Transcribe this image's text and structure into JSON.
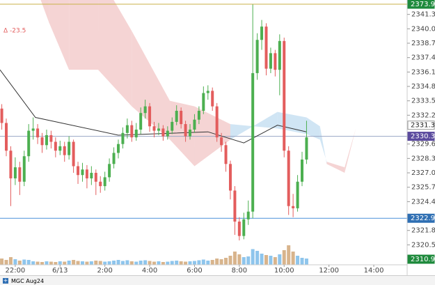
{
  "chart_data": {
    "type": "candlestick",
    "annotation": "Δ  -23.5",
    "instrument": "MGC Aug24",
    "up_color": "#4caf50",
    "down_color": "#e35d5d",
    "volume_up_color": "#8ec5ec",
    "volume_down_color": "#d8b48c",
    "x": [
      21.4,
      21.6,
      21.8,
      22.0,
      22.2,
      22.4,
      22.6,
      22.8,
      23.0,
      23.2,
      23.4,
      23.6,
      23.8,
      24.0,
      24.2,
      24.4,
      24.6,
      24.8,
      25.0,
      25.2,
      25.4,
      25.6,
      25.8,
      26.0,
      26.2,
      26.4,
      26.6,
      26.8,
      27.0,
      27.2,
      27.4,
      27.6,
      27.8,
      28.0,
      28.2,
      28.4,
      28.6,
      28.8,
      29.0,
      29.2,
      29.4,
      29.6,
      29.8,
      30.0,
      30.2,
      30.4,
      30.6,
      30.8,
      31.0,
      31.2,
      31.4,
      31.6,
      31.8,
      32.0,
      32.2,
      32.4,
      32.6,
      32.8,
      33.0,
      33.2,
      33.4,
      33.6,
      33.8,
      34.0,
      34.2,
      34.4,
      34.6,
      34.8,
      35.0
    ],
    "open": [
      2332.8,
      2331.5,
      2329.0,
      2326.5,
      2327.5,
      2326.2,
      2328.5,
      2330.8,
      2331.0,
      2330.2,
      2329.5,
      2330.4,
      2329.8,
      2329.0,
      2329.4,
      2328.6,
      2329.8,
      2327.6,
      2326.8,
      2327.3,
      2326.5,
      2327.0,
      2326.2,
      2325.8,
      2326.6,
      2327.8,
      2328.8,
      2329.6,
      2330.6,
      2331.3,
      2330.2,
      2330.9,
      2332.4,
      2333.0,
      2331.2,
      2330.8,
      2331.0,
      2330.3,
      2330.8,
      2331.6,
      2332.6,
      2331.4,
      2330.3,
      2330.9,
      2331.8,
      2332.6,
      2334.2,
      2334.4,
      2333.0,
      2330.2,
      2329.5,
      2327.8,
      2325.4,
      2322.6,
      2321.3,
      2322.8,
      2323.5,
      2336.0,
      2339.0,
      2340.2,
      2336.4,
      2337.8,
      2336.3,
      2338.9,
      2329.0,
      2324.0,
      2323.8,
      2326.2,
      2328.2
    ],
    "high": [
      2333.2,
      2331.9,
      2329.4,
      2328.4,
      2328.0,
      2329.0,
      2331.4,
      2332.0,
      2331.4,
      2330.6,
      2330.9,
      2330.8,
      2330.2,
      2329.9,
      2329.8,
      2330.3,
      2330.0,
      2328.0,
      2327.9,
      2327.7,
      2327.6,
      2327.3,
      2326.7,
      2327.1,
      2328.3,
      2329.3,
      2330.0,
      2331.1,
      2331.9,
      2331.7,
      2331.5,
      2332.9,
      2333.6,
      2333.3,
      2331.6,
      2331.5,
      2331.3,
      2331.2,
      2332.0,
      2333.1,
      2332.9,
      2331.7,
      2331.4,
      2332.3,
      2333.0,
      2334.8,
      2334.9,
      2334.7,
      2333.3,
      2330.6,
      2329.8,
      2328.1,
      2325.8,
      2323.0,
      2323.4,
      2324.5,
      2342.2,
      2339.6,
      2340.8,
      2340.5,
      2338.3,
      2338.1,
      2339.5,
      2339.2,
      2329.4,
      2325.1,
      2326.8,
      2328.9,
      2331.7
    ],
    "low": [
      2330.9,
      2328.5,
      2324.0,
      2325.9,
      2325.0,
      2325.8,
      2328.0,
      2330.0,
      2329.6,
      2328.8,
      2329.1,
      2329.2,
      2328.4,
      2328.6,
      2328.0,
      2328.2,
      2327.0,
      2326.0,
      2326.2,
      2325.6,
      2325.9,
      2325.0,
      2325.2,
      2325.4,
      2326.2,
      2327.4,
      2328.3,
      2329.2,
      2330.1,
      2329.8,
      2329.9,
      2330.5,
      2331.9,
      2330.7,
      2330.2,
      2330.4,
      2329.9,
      2330.0,
      2330.5,
      2331.3,
      2331.0,
      2329.8,
      2330.0,
      2330.6,
      2331.4,
      2332.3,
      2333.6,
      2332.6,
      2329.8,
      2328.9,
      2327.1,
      2324.6,
      2321.4,
      2320.9,
      2321.0,
      2322.3,
      2322.9,
      2335.4,
      2338.1,
      2335.8,
      2336.0,
      2335.7,
      2334.0,
      2328.4,
      2323.2,
      2323.0,
      2323.5,
      2325.8,
      2327.8
    ],
    "close": [
      2331.5,
      2329.0,
      2326.5,
      2327.5,
      2326.2,
      2328.5,
      2330.8,
      2331.0,
      2330.2,
      2329.5,
      2330.4,
      2329.8,
      2329.0,
      2329.4,
      2328.6,
      2329.8,
      2327.6,
      2326.8,
      2327.3,
      2326.5,
      2327.0,
      2326.2,
      2325.8,
      2326.6,
      2327.8,
      2328.8,
      2329.6,
      2330.6,
      2331.3,
      2330.2,
      2330.9,
      2332.4,
      2333.0,
      2331.2,
      2330.8,
      2331.0,
      2330.3,
      2330.8,
      2331.6,
      2332.6,
      2331.4,
      2330.3,
      2330.9,
      2331.8,
      2332.6,
      2334.2,
      2334.4,
      2333.0,
      2330.2,
      2329.5,
      2327.8,
      2325.4,
      2322.6,
      2321.3,
      2322.8,
      2323.5,
      2336.0,
      2339.0,
      2340.2,
      2336.4,
      2337.8,
      2336.3,
      2338.9,
      2329.0,
      2324.0,
      2323.8,
      2326.2,
      2328.2,
      2330.2
    ],
    "volume": [
      18,
      14,
      22,
      16,
      12,
      15,
      14,
      10,
      9,
      8,
      10,
      9,
      8,
      10,
      9,
      12,
      14,
      11,
      10,
      9,
      10,
      12,
      11,
      9,
      10,
      12,
      14,
      11,
      13,
      10,
      9,
      12,
      13,
      11,
      9,
      10,
      8,
      9,
      11,
      12,
      10,
      9,
      10,
      11,
      13,
      15,
      12,
      14,
      18,
      16,
      20,
      26,
      38,
      30,
      22,
      24,
      45,
      40,
      32,
      28,
      26,
      22,
      30,
      42,
      56,
      38,
      26,
      20,
      18
    ],
    "cloud": {
      "x": [
        22.7,
        23.5,
        24.4,
        25.7,
        27.2,
        28.9,
        30.0,
        31.6,
        33.7,
        35.0,
        35.6,
        35.9,
        36.7,
        37.2,
        39.2
      ],
      "span_a": [
        2345.0,
        2340.6,
        2336.3,
        2336.3,
        2333.0,
        2330.0,
        2327.6,
        2330.0,
        2332.5,
        2332.0,
        2331.2,
        2327.8,
        2327.0,
        2331.0,
        2331.0
      ],
      "span_b": [
        2345.0,
        2345.0,
        2345.0,
        2345.0,
        2339.8,
        2333.5,
        2333.0,
        2331.4,
        2331.0,
        2330.5,
        2330.0,
        2328.0,
        2327.5,
        2331.0,
        2331.0
      ],
      "bear_color": "#f3cccc",
      "bull_color": "#c8e0f2"
    },
    "ma": {
      "x": [
        21.32,
        22.9,
        26.6,
        30.6,
        32.2,
        33.7,
        35.0
      ],
      "values": [
        2336.3,
        2332.0,
        2330.4,
        2330.7,
        2329.7,
        2331.3,
        2330.7
      ],
      "color": "#333333"
    },
    "price_labels": [
      {
        "value": 2373.9,
        "color": "#1e8a3c",
        "text_color": "#ffffff",
        "line": "#c9b24a"
      },
      {
        "value": 2331.3,
        "color": "#ffffff",
        "text_color": "#222222"
      },
      {
        "value": 2330.3,
        "color": "#5b4b9e",
        "text_color": "#ffffff",
        "line": "#9aa7c4"
      },
      {
        "value": 2322.9,
        "color": "#2f6fb3",
        "text_color": "#ffffff",
        "line": "#4a90d9"
      },
      {
        "value": 2310.9,
        "color": "#1e8a3c",
        "text_color": "#ffffff"
      }
    ],
    "xlim": [
      21.32,
      39.49
    ],
    "ylim": [
      2318.7,
      2342.6
    ],
    "yticks": [
      2341.3,
      {
        "value": 2340,
        "label": "2340.0"
      },
      2338.7,
      2337.4,
      2336.1,
      2334.8,
      2333.5,
      2332.2,
      2329.6,
      2328.3,
      {
        "value": 2327,
        "label": "2327.0"
      },
      2325.7,
      2324.4,
      2321.8,
      2320.5
    ],
    "xticks": [
      {
        "value": 22,
        "label": "22:00"
      },
      {
        "value": 24,
        "label": "6/13"
      },
      {
        "value": 26,
        "label": "2:00"
      },
      {
        "value": 28,
        "label": "4:00"
      },
      {
        "value": 30,
        "label": "6:00"
      },
      {
        "value": 32,
        "label": "8:00"
      },
      {
        "value": 34,
        "label": "10:00"
      },
      {
        "value": 36,
        "label": "12:00"
      },
      {
        "value": 38,
        "label": "14:00"
      }
    ]
  }
}
